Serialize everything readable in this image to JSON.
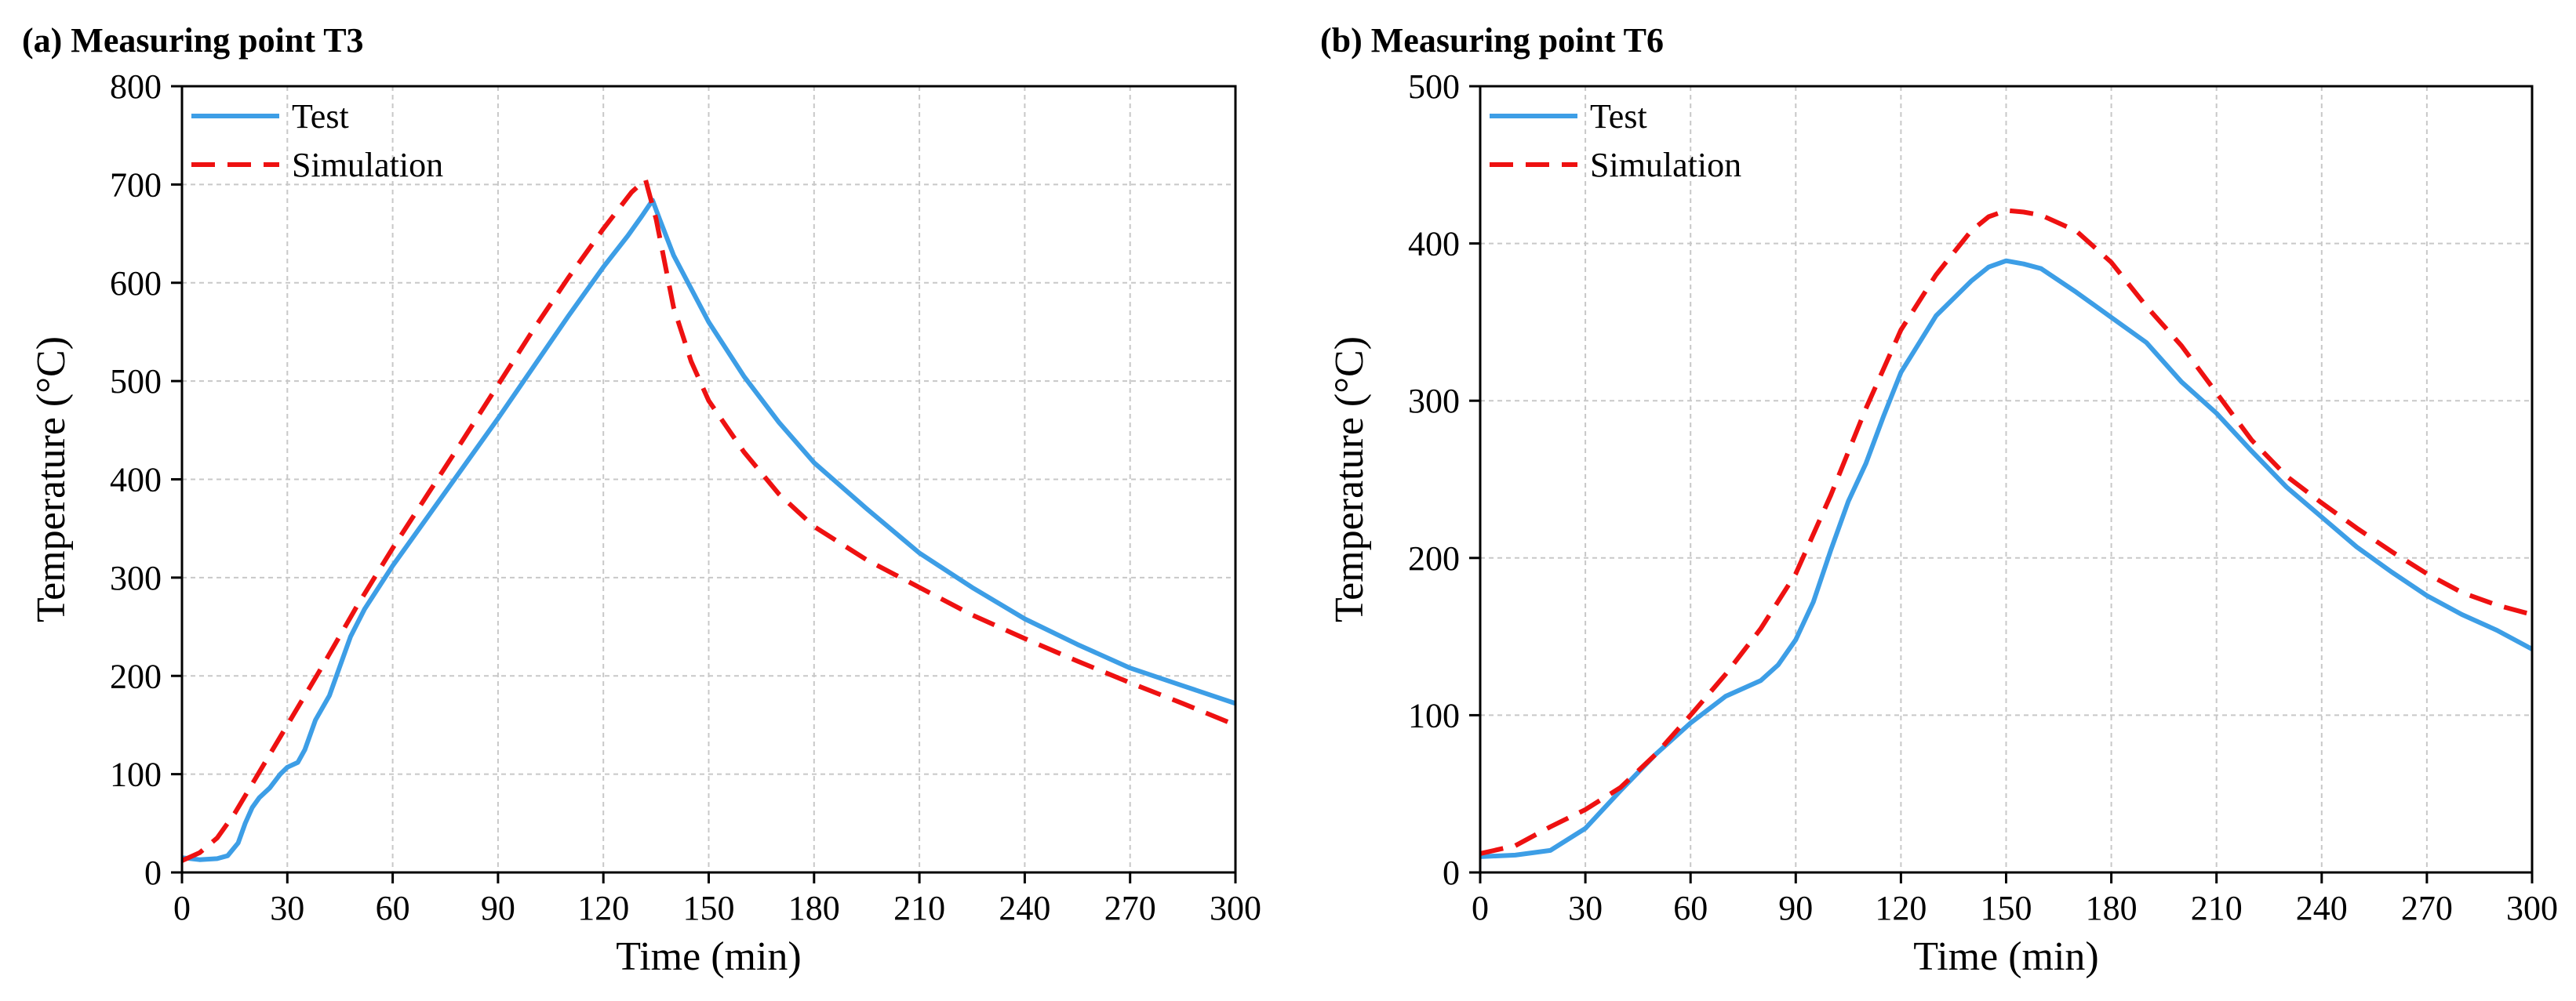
{
  "chart_data": [
    {
      "type": "line",
      "title": "(a) Measuring point T3",
      "xlabel": "Time (min)",
      "ylabel": "Temperature (°C)",
      "xlim": [
        0,
        300
      ],
      "ylim": [
        0,
        800
      ],
      "xticks": [
        "0",
        "30",
        "60",
        "90",
        "120",
        "150",
        "180",
        "210",
        "240",
        "270",
        "300"
      ],
      "yticks": [
        "0",
        "100",
        "200",
        "300",
        "400",
        "500",
        "600",
        "700",
        "800"
      ],
      "grid": true,
      "legend_position": "top-left",
      "series": [
        {
          "name": "Test",
          "color": "#3d9ee6",
          "style": "solid",
          "points": [
            [
              0,
              15
            ],
            [
              5,
              13
            ],
            [
              10,
              14
            ],
            [
              13,
              17
            ],
            [
              16,
              30
            ],
            [
              18,
              50
            ],
            [
              20,
              66
            ],
            [
              22,
              76
            ],
            [
              25,
              86
            ],
            [
              28,
              100
            ],
            [
              30,
              107
            ],
            [
              33,
              112
            ],
            [
              35,
              125
            ],
            [
              38,
              155
            ],
            [
              42,
              180
            ],
            [
              45,
              210
            ],
            [
              48,
              240
            ],
            [
              52,
              268
            ],
            [
              56,
              290
            ],
            [
              60,
              312
            ],
            [
              70,
              362
            ],
            [
              80,
              412
            ],
            [
              90,
              462
            ],
            [
              100,
              514
            ],
            [
              110,
              566
            ],
            [
              120,
              616
            ],
            [
              127,
              648
            ],
            [
              131,
              668
            ],
            [
              134,
              684
            ],
            [
              136,
              665
            ],
            [
              140,
              628
            ],
            [
              150,
              560
            ],
            [
              160,
              505
            ],
            [
              170,
              458
            ],
            [
              180,
              417
            ],
            [
              195,
              370
            ],
            [
              210,
              325
            ],
            [
              225,
              290
            ],
            [
              240,
              258
            ],
            [
              255,
              232
            ],
            [
              270,
              208
            ],
            [
              285,
              190
            ],
            [
              300,
              172
            ]
          ]
        },
        {
          "name": "Simulation",
          "color": "#ee1111",
          "style": "dashed",
          "points": [
            [
              0,
              12
            ],
            [
              5,
              20
            ],
            [
              10,
              35
            ],
            [
              15,
              60
            ],
            [
              20,
              90
            ],
            [
              30,
              150
            ],
            [
              40,
              210
            ],
            [
              50,
              272
            ],
            [
              60,
              330
            ],
            [
              70,
              385
            ],
            [
              80,
              440
            ],
            [
              90,
              496
            ],
            [
              100,
              552
            ],
            [
              110,
              605
            ],
            [
              120,
              655
            ],
            [
              128,
              692
            ],
            [
              132,
              705
            ],
            [
              135,
              665
            ],
            [
              140,
              575
            ],
            [
              145,
              520
            ],
            [
              150,
              480
            ],
            [
              160,
              428
            ],
            [
              170,
              385
            ],
            [
              180,
              352
            ],
            [
              195,
              318
            ],
            [
              210,
              290
            ],
            [
              225,
              262
            ],
            [
              240,
              238
            ],
            [
              255,
              215
            ],
            [
              270,
              193
            ],
            [
              285,
              172
            ],
            [
              300,
              150
            ]
          ]
        }
      ]
    },
    {
      "type": "line",
      "title": "(b) Measuring point T6",
      "xlabel": "Time (min)",
      "ylabel": "Temperature (°C)",
      "xlim": [
        0,
        300
      ],
      "ylim": [
        0,
        500
      ],
      "xticks": [
        "0",
        "30",
        "60",
        "90",
        "120",
        "150",
        "180",
        "210",
        "240",
        "270",
        "300"
      ],
      "yticks": [
        "0",
        "100",
        "200",
        "300",
        "400",
        "500"
      ],
      "grid": true,
      "legend_position": "top-left",
      "series": [
        {
          "name": "Test",
          "color": "#3d9ee6",
          "style": "solid",
          "points": [
            [
              0,
              10
            ],
            [
              10,
              11
            ],
            [
              20,
              14
            ],
            [
              30,
              28
            ],
            [
              40,
              52
            ],
            [
              50,
              75
            ],
            [
              60,
              95
            ],
            [
              70,
              112
            ],
            [
              80,
              122
            ],
            [
              85,
              132
            ],
            [
              90,
              148
            ],
            [
              95,
              172
            ],
            [
              100,
              205
            ],
            [
              105,
              236
            ],
            [
              110,
              260
            ],
            [
              115,
              290
            ],
            [
              120,
              318
            ],
            [
              130,
              354
            ],
            [
              140,
              376
            ],
            [
              145,
              385
            ],
            [
              150,
              389
            ],
            [
              155,
              387
            ],
            [
              160,
              384
            ],
            [
              170,
              369
            ],
            [
              180,
              353
            ],
            [
              190,
              337
            ],
            [
              200,
              312
            ],
            [
              210,
              292
            ],
            [
              220,
              268
            ],
            [
              230,
              245
            ],
            [
              240,
              226
            ],
            [
              250,
              207
            ],
            [
              260,
              191
            ],
            [
              270,
              176
            ],
            [
              280,
              164
            ],
            [
              290,
              154
            ],
            [
              300,
              142
            ]
          ]
        },
        {
          "name": "Simulation",
          "color": "#ee1111",
          "style": "dashed",
          "points": [
            [
              0,
              12
            ],
            [
              10,
              17
            ],
            [
              20,
              29
            ],
            [
              30,
              40
            ],
            [
              40,
              54
            ],
            [
              50,
              75
            ],
            [
              60,
              100
            ],
            [
              70,
              126
            ],
            [
              80,
              155
            ],
            [
              90,
              190
            ],
            [
              100,
              240
            ],
            [
              110,
              295
            ],
            [
              120,
              345
            ],
            [
              130,
              380
            ],
            [
              140,
              408
            ],
            [
              145,
              417
            ],
            [
              150,
              421
            ],
            [
              155,
              420
            ],
            [
              160,
              418
            ],
            [
              170,
              408
            ],
            [
              180,
              388
            ],
            [
              190,
              360
            ],
            [
              200,
              335
            ],
            [
              210,
              305
            ],
            [
              220,
              275
            ],
            [
              230,
              252
            ],
            [
              240,
              235
            ],
            [
              250,
              219
            ],
            [
              260,
              204
            ],
            [
              270,
              190
            ],
            [
              280,
              178
            ],
            [
              290,
              170
            ],
            [
              300,
              164
            ]
          ]
        }
      ]
    }
  ]
}
